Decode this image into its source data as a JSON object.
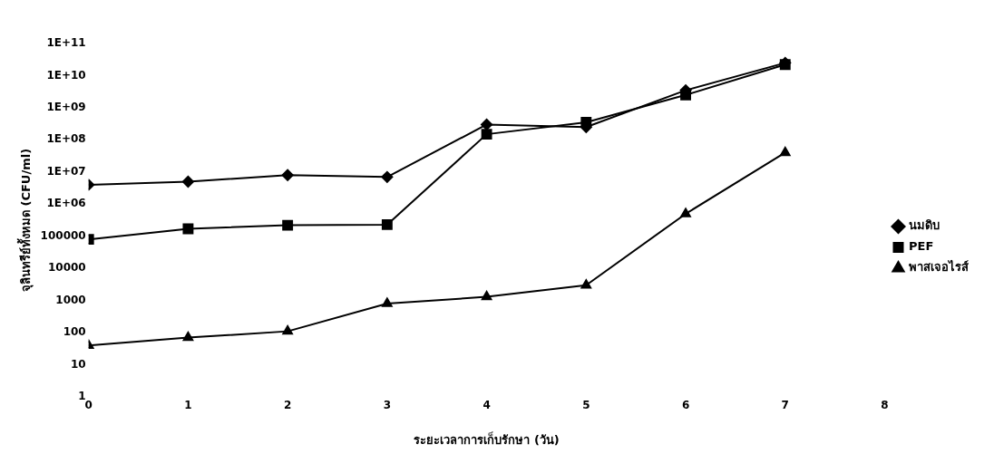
{
  "chart_data": {
    "type": "line",
    "xlabel": "ระยะเวลาการเก็บรักษา (วัน)",
    "ylabel": "จุลินทรีย์ทั้งหมด (CFU/ml)",
    "x": [
      0,
      1,
      2,
      3,
      4,
      5,
      6,
      7
    ],
    "xlim": [
      0,
      8
    ],
    "xticks": [
      0,
      1,
      2,
      3,
      4,
      5,
      6,
      7,
      8
    ],
    "log": "y",
    "ylim": [
      1,
      100000000000
    ],
    "yticks": [
      1,
      10,
      100,
      1000,
      10000,
      100000,
      {
        "value": 1000000,
        "label": "1E+06"
      },
      {
        "value": 10000000,
        "label": "1E+07"
      },
      {
        "value": 100000000,
        "label": "1E+08"
      },
      {
        "value": 1000000000,
        "label": "1E+09"
      },
      {
        "value": 10000000000,
        "label": "1E+10"
      },
      {
        "value": 100000000000,
        "label": "1E+11"
      }
    ],
    "grid": false,
    "legend": "right",
    "line_style": "solid",
    "series": [
      {
        "name": "นมดิบ",
        "color": "#000000",
        "marker": "diamond",
        "values": [
          4000000,
          5000000,
          8000000,
          7000000,
          300000000,
          250000000,
          3500000000,
          25000000000
        ]
      },
      {
        "name": "PEF",
        "color": "#000000",
        "marker": "square",
        "values": [
          80000,
          170000,
          220000,
          230000,
          150000000,
          350000000,
          2500000000,
          22000000000
        ]
      },
      {
        "name": "พาสเจอไรส์",
        "color": "#000000",
        "marker": "triangle",
        "values": [
          40,
          70,
          110,
          800,
          1300,
          3000,
          500000,
          40000000
        ]
      }
    ]
  }
}
